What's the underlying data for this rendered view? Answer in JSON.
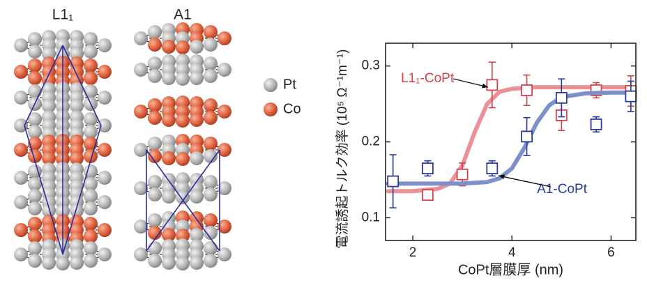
{
  "structures": {
    "labels": [
      "L1₁",
      "A1"
    ],
    "legend": [
      "Pt",
      "Co"
    ]
  },
  "chart_data": {
    "type": "scatter",
    "xlabel": "CoPt層膜厚 (nm)",
    "ylabel": "電流誘起トルク効率 (10⁵ Ω⁻¹m⁻¹)",
    "xlim": [
      1.45,
      6.5
    ],
    "xticks": [
      2,
      4,
      6
    ],
    "ylim": [
      0.07,
      0.33
    ],
    "yticks": [
      0.1,
      0.2,
      0.3
    ],
    "series": [
      {
        "name": "L1₁-CoPt",
        "color": "#d2434e",
        "fit_color": "#eb9096",
        "x": [
          2.3,
          3.0,
          3.6,
          4.3,
          5.0,
          5.7,
          6.4
        ],
        "values": [
          0.13,
          0.157,
          0.275,
          0.268,
          0.235,
          0.268,
          0.267
        ],
        "errors": [
          0.003,
          0.015,
          0.03,
          0.02,
          0.02,
          0.01,
          0.02
        ],
        "fit": {
          "x": [
            1.5,
            2,
            2.5,
            2.75,
            3,
            3.25,
            3.5,
            3.75,
            4,
            4.25,
            4.5,
            4.75,
            5,
            5.5,
            6,
            6.4
          ],
          "values": [
            0.135,
            0.135,
            0.138,
            0.145,
            0.169,
            0.213,
            0.25,
            0.266,
            0.27,
            0.271,
            0.272,
            0.272,
            0.272,
            0.272,
            0.272,
            0.272
          ]
        }
      },
      {
        "name": "A1-CoPt",
        "color": "#2a3b98",
        "fit_color": "#7d90c9",
        "x": [
          1.6,
          2.3,
          3.6,
          4.3,
          5.0,
          5.7,
          6.4
        ],
        "values": [
          0.148,
          0.165,
          0.165,
          0.207,
          0.258,
          0.223,
          0.26
        ],
        "errors": [
          0.035,
          0.01,
          0.01,
          0.025,
          0.025,
          0.01,
          0.02
        ],
        "fit": {
          "x": [
            1.5,
            2,
            2.5,
            2.75,
            3,
            3.25,
            3.5,
            3.75,
            4,
            4.25,
            4.5,
            4.75,
            5,
            5.5,
            6,
            6.4
          ],
          "values": [
            0.145,
            0.145,
            0.145,
            0.145,
            0.145,
            0.146,
            0.147,
            0.152,
            0.165,
            0.192,
            0.225,
            0.248,
            0.259,
            0.264,
            0.265,
            0.265
          ]
        }
      }
    ]
  }
}
